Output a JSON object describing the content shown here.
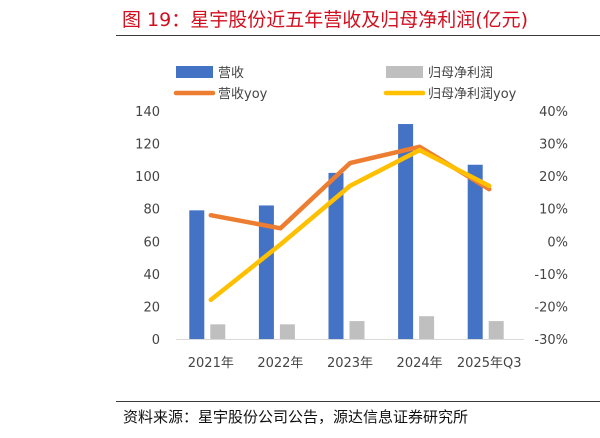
{
  "title": "图 19：星宇股份近五年营收及归母净利润(亿元)",
  "source": "资料来源：星宇股份公司公告，源达信息证券研究所",
  "chart_data": {
    "type": "bar",
    "categories": [
      "2021年",
      "2022年",
      "2023年",
      "2024年",
      "2025年Q3"
    ],
    "series": [
      {
        "name": "营收",
        "kind": "bar",
        "axis": "left",
        "color": "#4472c4",
        "values": [
          79,
          82,
          102,
          132,
          107
        ]
      },
      {
        "name": "归母净利润",
        "kind": "bar",
        "axis": "left",
        "color": "#bfbfbf",
        "values": [
          9,
          9,
          11,
          14,
          11
        ]
      },
      {
        "name": "营收yoy",
        "kind": "line",
        "axis": "right",
        "color": "#ed7d31",
        "values": [
          0.08,
          0.04,
          0.24,
          0.29,
          0.16
        ]
      },
      {
        "name": "归母净利润yoy",
        "kind": "line",
        "axis": "right",
        "color": "#ffc000",
        "values": [
          -0.18,
          -0.01,
          0.17,
          0.28,
          0.17
        ]
      }
    ],
    "y_left": {
      "min": 0,
      "max": 140,
      "ticks": [
        "0",
        "20",
        "40",
        "60",
        "80",
        "100",
        "120",
        "140"
      ]
    },
    "y_right": {
      "min": -0.3,
      "max": 0.4,
      "ticks": [
        "-30%",
        "-20%",
        "-10%",
        "0%",
        "10%",
        "20%",
        "30%",
        "40%"
      ]
    },
    "legend_position": "top",
    "grid": false
  }
}
